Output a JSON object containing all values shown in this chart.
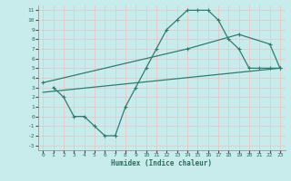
{
  "xlabel": "Humidex (Indice chaleur)",
  "bg_color": "#c8ecec",
  "grid_color": "#e8c8c8",
  "line_color": "#2e7d6e",
  "xlim": [
    -0.5,
    23.5
  ],
  "ylim": [
    -3.5,
    11.5
  ],
  "xticks": [
    0,
    1,
    2,
    3,
    4,
    5,
    6,
    7,
    8,
    9,
    10,
    11,
    12,
    13,
    14,
    15,
    16,
    17,
    18,
    19,
    20,
    21,
    22,
    23
  ],
  "yticks": [
    -3,
    -2,
    -1,
    0,
    1,
    2,
    3,
    4,
    5,
    6,
    7,
    8,
    9,
    10,
    11
  ],
  "curve1_x": [
    1,
    2,
    3,
    4,
    5,
    6,
    7,
    8,
    9,
    10,
    11,
    12,
    13,
    14,
    15,
    16,
    17,
    18,
    19,
    20,
    21,
    22,
    23
  ],
  "curve1_y": [
    3,
    2,
    0,
    0,
    -1,
    -2,
    -2,
    1,
    3,
    5,
    7,
    9,
    10,
    11,
    11,
    11,
    10,
    8,
    7,
    5,
    5,
    5,
    5
  ],
  "curve2_x": [
    0,
    14,
    19,
    22,
    23
  ],
  "curve2_y": [
    3.5,
    7,
    8.5,
    7.5,
    5
  ],
  "curve3_x": [
    0,
    23
  ],
  "curve3_y": [
    2.5,
    5
  ],
  "marker": "+"
}
